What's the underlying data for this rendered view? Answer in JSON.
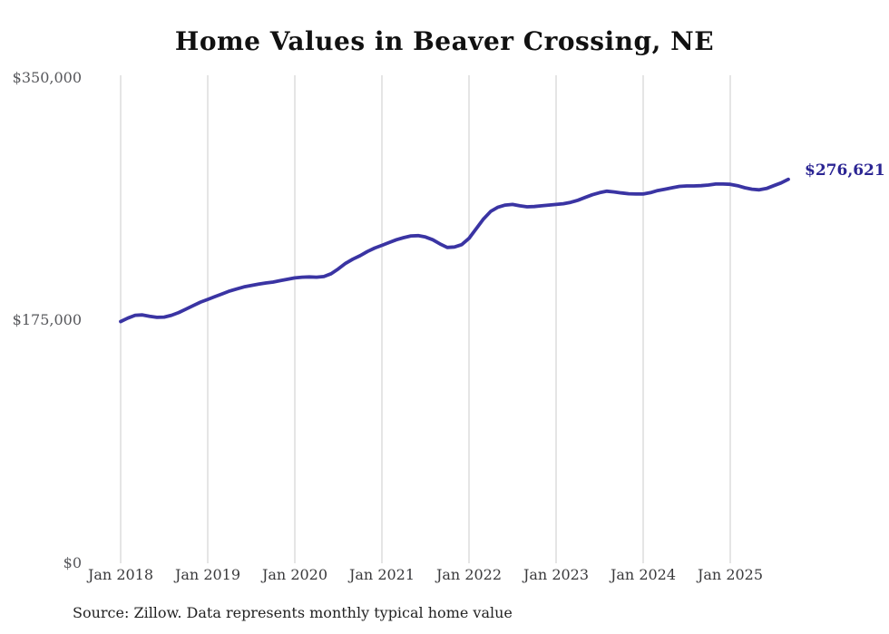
{
  "chart": {
    "title": "Home Values in Beaver Crossing, NE",
    "end_label": "$276,621",
    "source": "Source: Zillow. Data represents monthly typical home value",
    "line_color": "#3a34a3",
    "end_label_color": "#2b2593",
    "gridline_color": "#cbcbcb"
  },
  "chart_data": {
    "type": "line",
    "title": "Home Values in Beaver Crossing, NE",
    "xlabel": "",
    "ylabel": "",
    "ylim": [
      0,
      350000
    ],
    "grid": "vertical-only",
    "legend_position": "none",
    "x_start_month": "Jan 2018",
    "x_end_month": "Sep 2025",
    "x_tick_labels": [
      "Jan 2018",
      "Jan 2019",
      "Jan 2020",
      "Jan 2021",
      "Jan 2022",
      "Jan 2023",
      "Jan 2024",
      "Jan 2025"
    ],
    "x_tick_month_indices": [
      0,
      12,
      24,
      36,
      48,
      60,
      72,
      84
    ],
    "y_ticks": [
      {
        "label": "$0",
        "value": 0
      },
      {
        "label": "$175,000",
        "value": 175000
      },
      {
        "label": "$350,000",
        "value": 350000
      }
    ],
    "latest_value": 276621,
    "latest_value_label": "$276,621",
    "series": [
      {
        "name": "Monthly typical home value",
        "monthly_values": [
          174000,
          176500,
          178500,
          178800,
          177800,
          177000,
          177200,
          178500,
          180500,
          183000,
          185500,
          188000,
          190000,
          192000,
          194000,
          196000,
          197500,
          199000,
          200000,
          201000,
          201800,
          202500,
          203500,
          204500,
          205500,
          206000,
          206200,
          206000,
          206500,
          208500,
          212000,
          216000,
          219000,
          221500,
          224500,
          227000,
          229000,
          231000,
          233000,
          234500,
          235800,
          236000,
          235000,
          233000,
          230000,
          227500,
          227800,
          229500,
          234000,
          241000,
          248000,
          253500,
          256500,
          258000,
          258500,
          257500,
          256800,
          257000,
          257500,
          258000,
          258500,
          259000,
          260000,
          261500,
          263500,
          265500,
          267000,
          268000,
          267500,
          266800,
          266200,
          266000,
          266000,
          267000,
          268500,
          269500,
          270500,
          271500,
          271800,
          271800,
          272000,
          272500,
          273200,
          273200,
          273000,
          272000,
          270500,
          269500,
          269000,
          270000,
          272000,
          274000,
          276621
        ]
      }
    ]
  }
}
